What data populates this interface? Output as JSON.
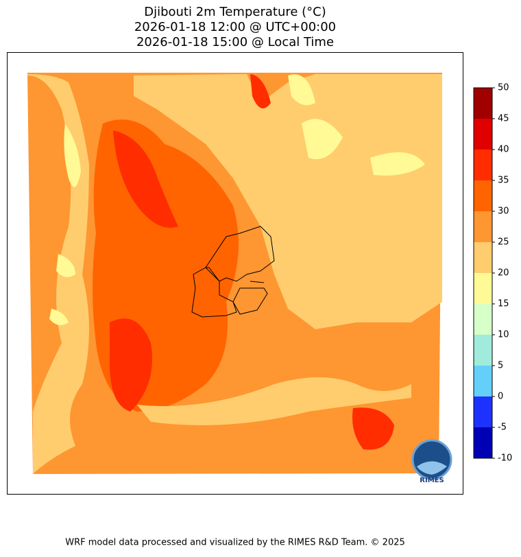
{
  "title": [
    "Djibouti 2m Temperature (°C)",
    "2026-01-18 12:00 @ UTC+00:00",
    "2026-01-18 15:00 @ Local Time"
  ],
  "colorbar": {
    "lim": [
      -10,
      50
    ],
    "ticks": [
      -10,
      -5,
      0,
      5,
      10,
      15,
      20,
      25,
      30,
      35,
      40,
      45,
      50
    ],
    "colors": [
      "#0000b4",
      "#1e32ff",
      "#64d0fa",
      "#a0ebdc",
      "#d7ffc8",
      "#fffa96",
      "#ffcd6e",
      "#fe9632",
      "#ff6400",
      "#ff2d00",
      "#e10000",
      "#a00000"
    ]
  },
  "logo": "RIMES",
  "footer": "WRF model data processed and visualized by the RIMES R&D Team. © 2025"
}
